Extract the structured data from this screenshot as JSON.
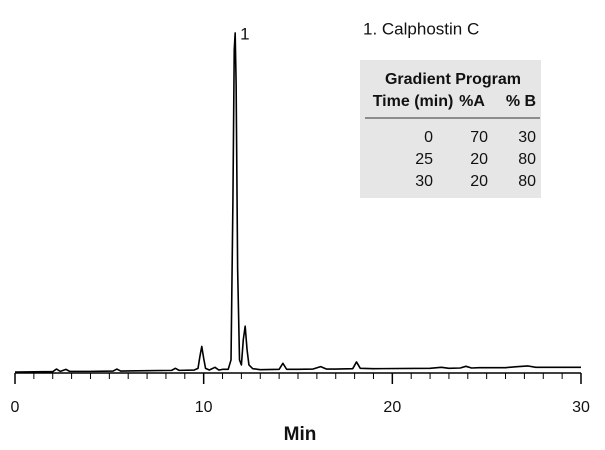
{
  "chart_data": {
    "type": "line",
    "xlabel": "Min",
    "x": [
      0,
      1.5,
      2.0,
      2.2,
      2.4,
      2.7,
      2.9,
      3.1,
      4,
      5.2,
      5.4,
      5.6,
      7,
      8.3,
      8.5,
      8.7,
      9.5,
      9.7,
      9.8,
      9.9,
      10.0,
      10.1,
      10.3,
      10.6,
      10.8,
      11.0,
      11.3,
      11.45,
      11.55,
      11.62,
      11.67,
      11.72,
      11.8,
      11.9,
      12.0,
      12.1,
      12.2,
      12.3,
      12.4,
      12.6,
      13,
      14.0,
      14.2,
      14.4,
      15,
      15.8,
      16.2,
      16.5,
      17,
      17.9,
      18.1,
      18.3,
      19,
      22,
      22.6,
      23,
      23.6,
      23.9,
      24.2,
      24.6,
      26,
      26.6,
      27.2,
      27.6,
      30
    ],
    "values": [
      -0.6,
      -0.5,
      -0.5,
      0.3,
      -0.4,
      0.2,
      -0.4,
      -0.4,
      -0.4,
      -0.3,
      0.3,
      -0.3,
      -0.2,
      -0.1,
      0.5,
      -0.1,
      0,
      0.5,
      4,
      7,
      3.5,
      0.5,
      0,
      0.8,
      0,
      0.2,
      0.2,
      3,
      50,
      95,
      100,
      85,
      30,
      3,
      1.5,
      9,
      13,
      6,
      1.5,
      0.4,
      0.1,
      0.2,
      2,
      0.2,
      0.2,
      0.3,
      1,
      0.3,
      0.3,
      0.4,
      2.4,
      0.5,
      0.4,
      0.5,
      0.8,
      0.5,
      0.6,
      1.1,
      0.6,
      0.7,
      0.7,
      1,
      1.2,
      0.8,
      0.8
    ],
    "color": "#000000",
    "xlim": [
      0,
      30
    ],
    "xticks": [
      0,
      10,
      20,
      30
    ],
    "xminorticks": [
      1,
      2,
      3,
      4,
      5,
      6,
      7,
      8,
      9,
      11,
      12,
      13,
      14,
      15,
      16,
      17,
      18,
      19,
      21,
      22,
      23,
      24,
      25,
      26,
      27,
      28,
      29
    ],
    "ylim": [
      -1,
      104
    ],
    "annotations": [
      {
        "text": "1",
        "x": 11.67,
        "y": 100
      }
    ],
    "legend_text": "1.  Calphostin C"
  },
  "table": {
    "title": "Gradient Program",
    "columns": [
      "Time (min)",
      "%A",
      "% B"
    ],
    "rows": [
      [
        0,
        70,
        30
      ],
      [
        25,
        20,
        80
      ],
      [
        30,
        20,
        80
      ]
    ]
  }
}
